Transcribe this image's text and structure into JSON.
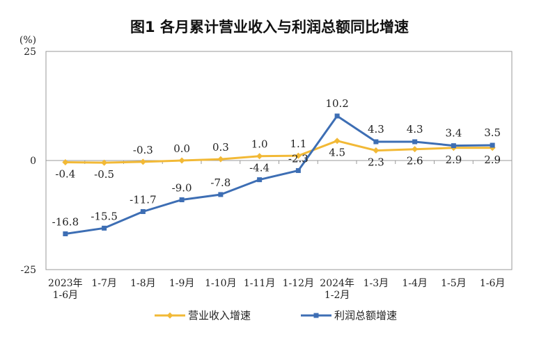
{
  "chart_data": {
    "type": "line",
    "title": "图1  各月累计营业收入与利润总额同比增速",
    "unit_label": "(%)",
    "ylim": [
      -25,
      25
    ],
    "y_ticks": [
      "25",
      "0",
      "-25"
    ],
    "categories": [
      [
        "2023年",
        "1-6月"
      ],
      [
        "1-7月"
      ],
      [
        "1-8月"
      ],
      [
        "1-9月"
      ],
      [
        "1-10月"
      ],
      [
        "1-11月"
      ],
      [
        "1-12月"
      ],
      [
        "2024年",
        "1-2月"
      ],
      [
        "1-3月"
      ],
      [
        "1-4月"
      ],
      [
        "1-5月"
      ],
      [
        "1-6月"
      ]
    ],
    "series": [
      {
        "name": "营业收入增速",
        "color": "#F2B936",
        "marker": "diamond",
        "values": [
          -0.4,
          -0.5,
          -0.3,
          0.0,
          0.3,
          1.0,
          1.1,
          4.5,
          2.3,
          2.6,
          2.9,
          2.9
        ],
        "labels": [
          "-0.4",
          "-0.5",
          "-0.3",
          "0.0",
          "0.3",
          "1.0",
          "1.1",
          "4.5",
          "2.3",
          "2.6",
          "2.9",
          "2.9"
        ]
      },
      {
        "name": "利润总额增速",
        "color": "#3D6EB4",
        "marker": "square",
        "values": [
          -16.8,
          -15.5,
          -11.7,
          -9.0,
          -7.8,
          -4.4,
          -2.3,
          10.2,
          4.3,
          4.3,
          3.4,
          3.5
        ],
        "labels": [
          "-16.8",
          "-15.5",
          "-11.7",
          "-9.0",
          "-7.8",
          "-4.4",
          "-2.3",
          "10.2",
          "4.3",
          "4.3",
          "3.4",
          "3.5"
        ]
      }
    ],
    "grid": false,
    "legend_position": "bottom"
  }
}
